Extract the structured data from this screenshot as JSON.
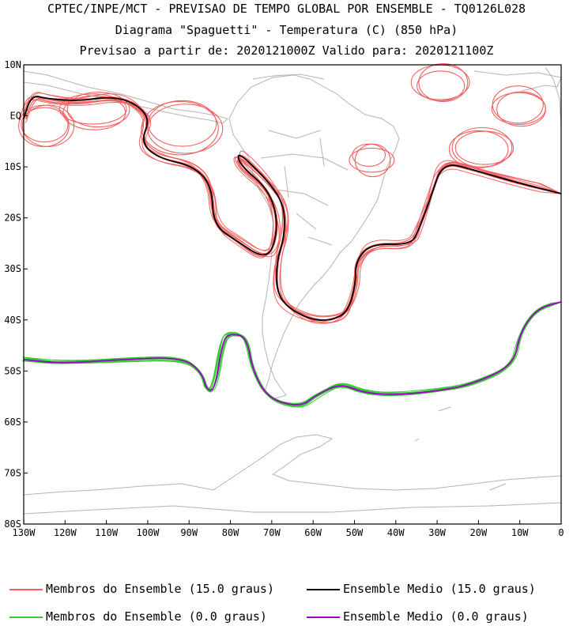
{
  "titles": {
    "line1": "CPTEC/INPE/MCT - PREVISAO DE TEMPO GLOBAL POR ENSEMBLE - TQ0126L028",
    "line2": "Diagrama \"Spaguetti\" - Temperatura (C) (850 hPa)",
    "line3": "Previsao a partir de: 2020121000Z  Valido para: 2020121100Z"
  },
  "axes": {
    "lat_labels": [
      "10N",
      "EQ",
      "10S",
      "20S",
      "30S",
      "40S",
      "50S",
      "60S",
      "70S",
      "80S"
    ],
    "lon_labels": [
      "130W",
      "120W",
      "110W",
      "100W",
      "90W",
      "80W",
      "70W",
      "60W",
      "50W",
      "40W",
      "30W",
      "20W",
      "10W",
      "0"
    ]
  },
  "legend": [
    {
      "label": "Membros do Ensemble (15.0 graus)",
      "color": "#f26060"
    },
    {
      "label": "Ensemble Medio (15.0 graus)",
      "color": "#000000"
    },
    {
      "label": "Membros do Ensemble (0.0 graus)",
      "color": "#33cc33"
    },
    {
      "label": "Ensemble Medio (0.0 graus)",
      "color": "#a000c8"
    }
  ],
  "colors": {
    "member_15": "#f26060",
    "mean_15": "#000000",
    "member_0": "#33cc33",
    "mean_0": "#a000c8",
    "coastline": "#b4b4b4"
  }
}
